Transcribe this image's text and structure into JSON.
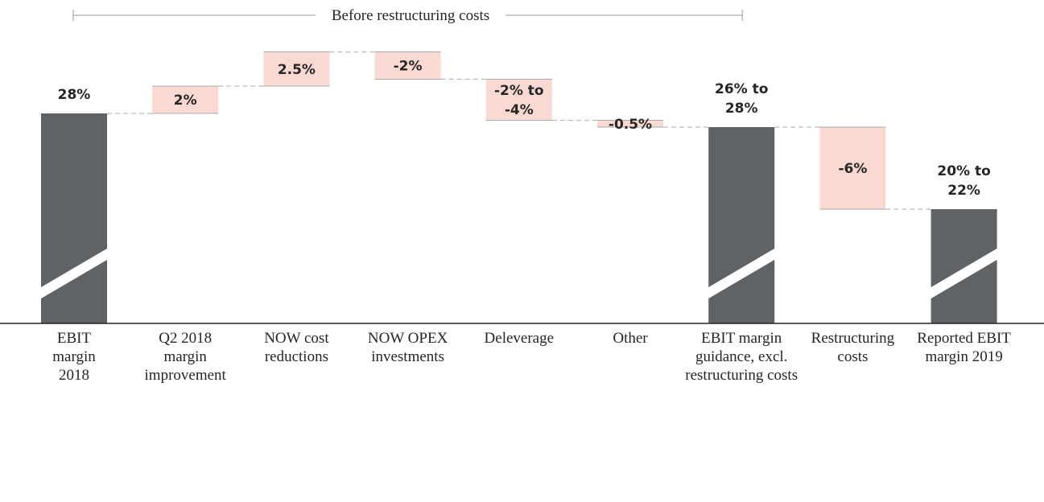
{
  "chart_data": {
    "type": "bar",
    "subtype": "waterfall",
    "title": "",
    "xlabel": "",
    "ylabel": "",
    "y_axis": "not shown",
    "grid": false,
    "bracket_label": "Before restructuring costs",
    "colors": {
      "total": "#5f6366",
      "delta": "#fad9d3",
      "delta_edge": "#aaaaaa",
      "axis": "#262626",
      "connector": "#bbbbbb"
    },
    "categories": [
      [
        "EBIT",
        "margin",
        "2018"
      ],
      [
        "Q2 2018",
        "margin",
        "improvement"
      ],
      [
        "NOW cost",
        "reductions"
      ],
      [
        "NOW OPEX",
        "investments"
      ],
      [
        "Deleverage"
      ],
      [
        "Other"
      ],
      [
        "EBIT margin",
        "guidance, excl.",
        "restructuring costs"
      ],
      [
        "Restructuring",
        "costs"
      ],
      [
        "Reported EBIT",
        "margin 2019"
      ]
    ],
    "steps": [
      {
        "kind": "total",
        "start": 0,
        "end": 28,
        "label": [
          "28%"
        ],
        "axis_break": true
      },
      {
        "kind": "delta",
        "start": 28,
        "end": 30,
        "label": [
          "2%"
        ]
      },
      {
        "kind": "delta",
        "start": 30,
        "end": 32.5,
        "label": [
          "2.5%"
        ]
      },
      {
        "kind": "delta",
        "start": 32.5,
        "end": 30.5,
        "label": [
          "-2%"
        ]
      },
      {
        "kind": "delta",
        "start": 30.5,
        "end": 27.5,
        "label": [
          "-2% to",
          "-4%"
        ]
      },
      {
        "kind": "delta",
        "start": 27.5,
        "end": 27,
        "label": [
          "-0.5%"
        ]
      },
      {
        "kind": "total",
        "start": 0,
        "end": 27,
        "label": [
          "26% to",
          "28%"
        ],
        "axis_break": true
      },
      {
        "kind": "delta",
        "start": 27,
        "end": 21,
        "label": [
          "-6%"
        ]
      },
      {
        "kind": "total",
        "start": 0,
        "end": 21,
        "label": [
          "20% to",
          "22%"
        ],
        "axis_break": true
      }
    ]
  }
}
